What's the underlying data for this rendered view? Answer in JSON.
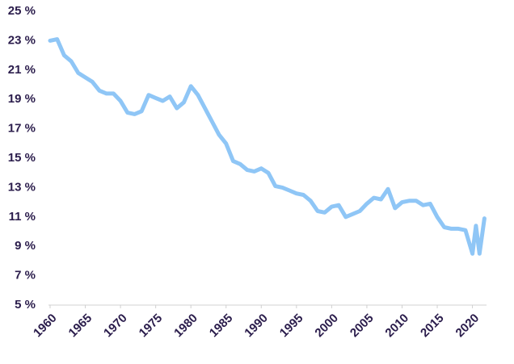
{
  "chart_data": {
    "type": "line",
    "x": [
      1960,
      1961,
      1962,
      1963,
      1964,
      1965,
      1966,
      1967,
      1968,
      1969,
      1970,
      1971,
      1972,
      1973,
      1974,
      1975,
      1976,
      1977,
      1978,
      1979,
      1980,
      1981,
      1982,
      1983,
      1984,
      1985,
      1986,
      1987,
      1988,
      1989,
      1990,
      1991,
      1992,
      1993,
      1994,
      1995,
      1996,
      1997,
      1998,
      1999,
      2000,
      2001,
      2002,
      2003,
      2004,
      2005,
      2006,
      2007,
      2008,
      2009,
      2010,
      2011,
      2012,
      2013,
      2014,
      2015,
      2016,
      2017,
      2018,
      2019,
      2020,
      2020.5,
      2021,
      2021.7
    ],
    "series": [
      {
        "color": "#8fc6f6",
        "values": [
          23.0,
          23.1,
          22.0,
          21.6,
          20.8,
          20.5,
          20.2,
          19.6,
          19.4,
          19.4,
          18.9,
          18.1,
          18.0,
          18.2,
          19.3,
          19.1,
          18.9,
          19.2,
          18.4,
          18.8,
          19.9,
          19.3,
          18.4,
          17.5,
          16.6,
          16.0,
          14.8,
          14.6,
          14.2,
          14.1,
          14.3,
          14.0,
          13.1,
          13.0,
          12.8,
          12.6,
          12.5,
          12.1,
          11.4,
          11.3,
          11.7,
          11.8,
          11.0,
          11.2,
          11.4,
          11.9,
          12.3,
          12.2,
          12.9,
          11.6,
          12.0,
          12.1,
          12.1,
          11.8,
          11.9,
          11.0,
          10.3,
          10.2,
          10.2,
          10.1,
          8.5,
          10.4,
          8.5,
          10.9
        ]
      }
    ],
    "xlim": [
      1960,
      2022
    ],
    "xticks": [
      1960,
      1965,
      1970,
      1975,
      1980,
      1985,
      1990,
      1995,
      2000,
      2005,
      2010,
      2015,
      2020
    ],
    "ylim": [
      5,
      25
    ],
    "yticks": [
      {
        "value": 5,
        "label": "5 %"
      },
      {
        "value": 7,
        "label": "7 %"
      },
      {
        "value": 9,
        "label": "9 %"
      },
      {
        "value": 11,
        "label": "11 %"
      },
      {
        "value": 13,
        "label": "13 %"
      },
      {
        "value": 15,
        "label": "15 %"
      },
      {
        "value": 17,
        "label": "17 %"
      },
      {
        "value": 19,
        "label": "19 %"
      },
      {
        "value": 21,
        "label": "21 %"
      },
      {
        "value": 23,
        "label": "23 %"
      },
      {
        "value": 25,
        "label": "25 %"
      }
    ],
    "grid": false
  }
}
